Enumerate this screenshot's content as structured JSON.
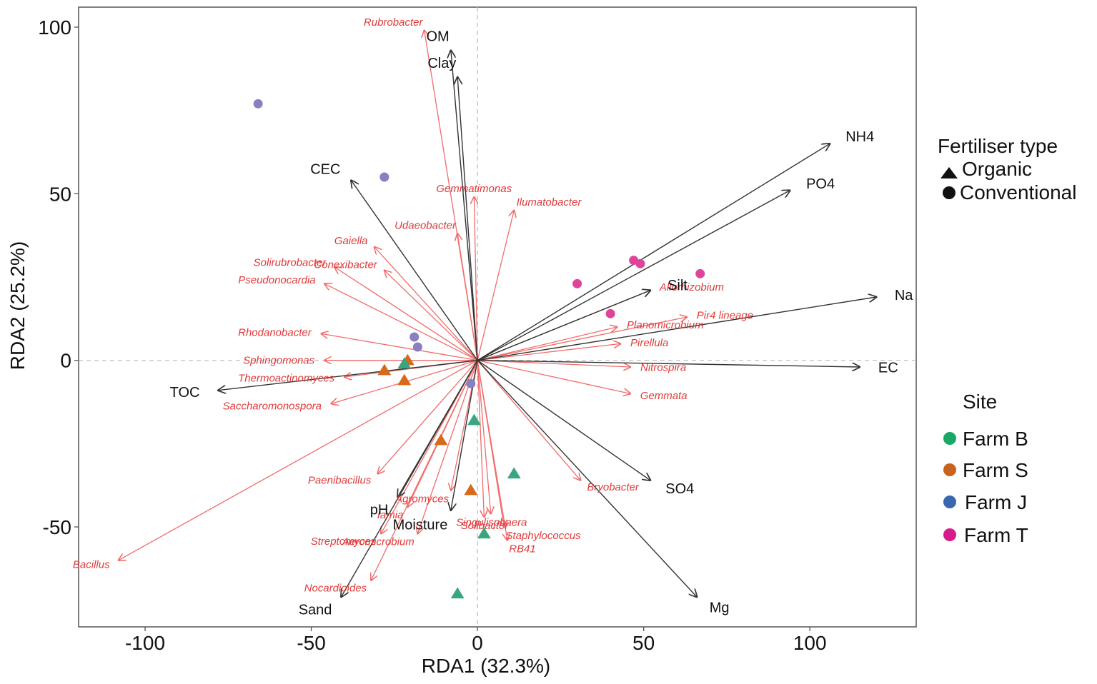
{
  "chart_data": {
    "type": "scatter",
    "subtype": "RDA biplot",
    "xlabel": "RDA1 (32.3%)",
    "ylabel": "RDA2 (25.2%)",
    "xlim": [
      -120,
      132
    ],
    "ylim": [
      -80,
      106
    ],
    "xticks": [
      -100,
      -50,
      0,
      50,
      100
    ],
    "yticks": [
      -50,
      0,
      50,
      100
    ],
    "tick_labels_x": [
      "-100",
      "-50",
      "0",
      "50",
      "100"
    ],
    "tick_labels_y": [
      "-50",
      "0",
      "50",
      "100"
    ],
    "reference_lines": {
      "x": 0,
      "y": 0,
      "style": "dashed"
    },
    "colors": {
      "env_arrow": "#333333",
      "species_arrow": "#f26b6b",
      "species_text": "#e03a3a",
      "Farm B": "#1aa867",
      "Farm S": "#c8631e",
      "Farm J": "#3a66b0",
      "Farm T": "#d81b8c",
      "plot_Farm B": "#3aa57f",
      "plot_Farm S": "#d66a1a",
      "plot_Farm J": "#8a80c0",
      "plot_Farm T": "#e0439a"
    },
    "env_vectors": [
      {
        "name": "OM",
        "x": -8,
        "y": 93
      },
      {
        "name": "Clay",
        "x": -6,
        "y": 85
      },
      {
        "name": "CEC",
        "x": -38,
        "y": 54
      },
      {
        "name": "NH4",
        "x": 106,
        "y": 65
      },
      {
        "name": "PO4",
        "x": 94,
        "y": 51
      },
      {
        "name": "Na",
        "x": 120,
        "y": 19
      },
      {
        "name": "Silt",
        "x": 52,
        "y": 21
      },
      {
        "name": "EC",
        "x": 115,
        "y": -2
      },
      {
        "name": "TOC",
        "x": -78,
        "y": -9
      },
      {
        "name": "SO4",
        "x": 52,
        "y": -36
      },
      {
        "name": "Mg",
        "x": 66,
        "y": -71
      },
      {
        "name": "pH",
        "x": -24,
        "y": -41
      },
      {
        "name": "Moisture",
        "x": -8,
        "y": -45
      },
      {
        "name": "Sand",
        "x": -41,
        "y": -71
      }
    ],
    "species_vectors": [
      {
        "name": "Rubrobacter",
        "x": -16,
        "y": 99
      },
      {
        "name": "Gemmatimonas",
        "x": -1,
        "y": 49
      },
      {
        "name": "Ilumatobacter",
        "x": 11,
        "y": 45
      },
      {
        "name": "Udaeobacter",
        "x": -6,
        "y": 38
      },
      {
        "name": "Gaiella",
        "x": -31,
        "y": 34
      },
      {
        "name": "Conexibacter",
        "x": -28,
        "y": 27
      },
      {
        "name": "Solirubrobacter",
        "x": -43,
        "y": 28
      },
      {
        "name": "Pseudonocardia",
        "x": -46,
        "y": 23
      },
      {
        "name": "Rhodanobacter",
        "x": -47,
        "y": 8
      },
      {
        "name": "Sphingomonas",
        "x": -46,
        "y": 0
      },
      {
        "name": "Thermoactinomyces",
        "x": -40,
        "y": -5
      },
      {
        "name": "Saccharomonospora",
        "x": -44,
        "y": -13
      },
      {
        "name": "Bacillus",
        "x": -108,
        "y": -60
      },
      {
        "name": "Paenibacillus",
        "x": -30,
        "y": -34
      },
      {
        "name": "Iamia",
        "x": -21,
        "y": -44
      },
      {
        "name": "Agromyces",
        "x": -8,
        "y": -39
      },
      {
        "name": "Streptomyces",
        "x": -29,
        "y": -52
      },
      {
        "name": "Aeromicrobium",
        "x": -18,
        "y": -52
      },
      {
        "name": "Nocardioides",
        "x": -32,
        "y": -66
      },
      {
        "name": "Solibacter",
        "x": 2,
        "y": -47
      },
      {
        "name": "Singulisphaera",
        "x": 4,
        "y": -46
      },
      {
        "name": "Staphylococcus",
        "x": 8,
        "y": -50
      },
      {
        "name": "RB41",
        "x": 9,
        "y": -54
      },
      {
        "name": "Bryobacter",
        "x": 31,
        "y": -36
      },
      {
        "name": "Gemmata",
        "x": 46,
        "y": -10
      },
      {
        "name": "Nitrospira",
        "x": 46,
        "y": -2
      },
      {
        "name": "Pirellula",
        "x": 43,
        "y": 5
      },
      {
        "name": "Planomicrobium",
        "x": 42,
        "y": 10
      },
      {
        "name": "Pir4 lineage",
        "x": 63,
        "y": 13
      },
      {
        "name": "Allorhizobium",
        "x": 52,
        "y": 21
      }
    ],
    "site_points": [
      {
        "site": "Farm J",
        "type": "Conventional",
        "x": -66,
        "y": 77
      },
      {
        "site": "Farm J",
        "type": "Conventional",
        "x": -28,
        "y": 55
      },
      {
        "site": "Farm J",
        "type": "Conventional",
        "x": -19,
        "y": 7
      },
      {
        "site": "Farm J",
        "type": "Conventional",
        "x": -18,
        "y": 4
      },
      {
        "site": "Farm J",
        "type": "Conventional",
        "x": -2,
        "y": -7
      },
      {
        "site": "Farm T",
        "type": "Conventional",
        "x": 30,
        "y": 23
      },
      {
        "site": "Farm T",
        "type": "Conventional",
        "x": 47,
        "y": 30
      },
      {
        "site": "Farm T",
        "type": "Conventional",
        "x": 49,
        "y": 29
      },
      {
        "site": "Farm T",
        "type": "Conventional",
        "x": 67,
        "y": 26
      },
      {
        "site": "Farm T",
        "type": "Conventional",
        "x": 40,
        "y": 14
      },
      {
        "site": "Farm S",
        "type": "Organic",
        "x": -22,
        "y": -6
      },
      {
        "site": "Farm S",
        "type": "Organic",
        "x": -28,
        "y": -3
      },
      {
        "site": "Farm S",
        "type": "Organic",
        "x": -21,
        "y": 0
      },
      {
        "site": "Farm S",
        "type": "Organic",
        "x": -11,
        "y": -24
      },
      {
        "site": "Farm S",
        "type": "Organic",
        "x": -2,
        "y": -39
      },
      {
        "site": "Farm B",
        "type": "Organic",
        "x": -22,
        "y": -1
      },
      {
        "site": "Farm B",
        "type": "Organic",
        "x": -1,
        "y": -18
      },
      {
        "site": "Farm B",
        "type": "Organic",
        "x": 11,
        "y": -34
      },
      {
        "site": "Farm B",
        "type": "Organic",
        "x": 2,
        "y": -52
      },
      {
        "site": "Farm B",
        "type": "Organic",
        "x": -6,
        "y": -70
      }
    ],
    "legend": {
      "position": "right",
      "shape_title": "Fertiliser type",
      "shapes": [
        {
          "label": "Organic",
          "symbol": "triangle"
        },
        {
          "label": "Conventional",
          "symbol": "circle"
        }
      ],
      "color_title": "Site",
      "sites": [
        "Farm B",
        "Farm S",
        "Farm J",
        "Farm T"
      ]
    }
  }
}
